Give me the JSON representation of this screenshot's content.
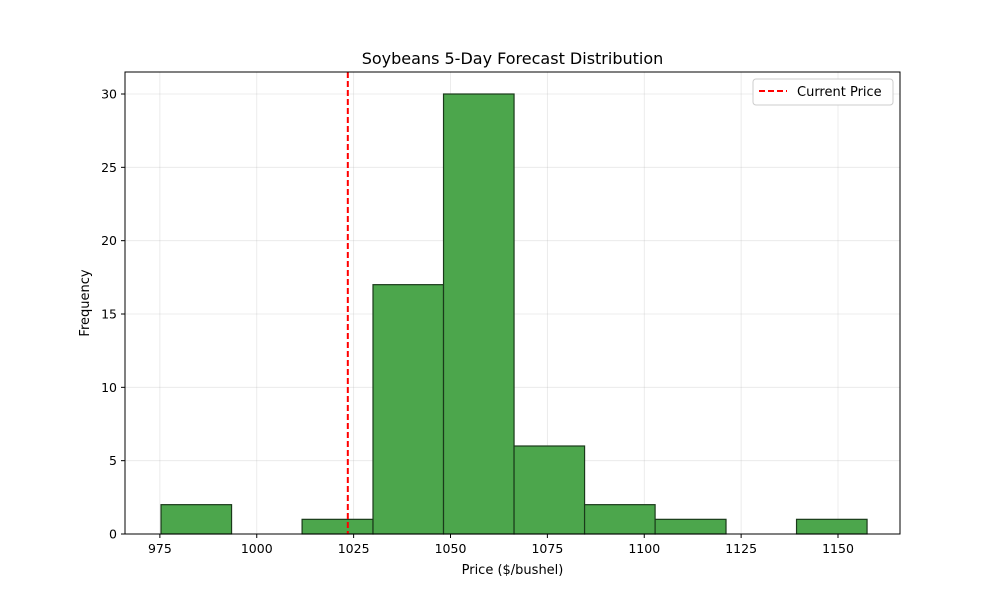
{
  "chart_data": {
    "type": "bar",
    "title": "Soybeans 5-Day Forecast Distribution",
    "xlabel": "Price ($/bushel)",
    "ylabel": "Frequency",
    "xlim": [
      966,
      1166
    ],
    "ylim": [
      0,
      31.5
    ],
    "xticks": [
      975,
      1000,
      1025,
      1050,
      1075,
      1100,
      1125,
      1150
    ],
    "yticks": [
      0,
      5,
      10,
      15,
      20,
      25,
      30
    ],
    "grid": true,
    "bins": [
      {
        "x0": 975.3,
        "x1": 993.5,
        "count": 2
      },
      {
        "x0": 993.5,
        "x1": 1011.7,
        "count": 0
      },
      {
        "x0": 1011.7,
        "x1": 1030.0,
        "count": 1
      },
      {
        "x0": 1030.0,
        "x1": 1048.2,
        "count": 17
      },
      {
        "x0": 1048.2,
        "x1": 1066.4,
        "count": 30
      },
      {
        "x0": 1066.4,
        "x1": 1084.6,
        "count": 6
      },
      {
        "x0": 1084.6,
        "x1": 1102.8,
        "count": 2
      },
      {
        "x0": 1102.8,
        "x1": 1121.1,
        "count": 1
      },
      {
        "x0": 1121.1,
        "x1": 1139.3,
        "count": 0
      },
      {
        "x0": 1139.3,
        "x1": 1157.5,
        "count": 1
      }
    ],
    "reference_line": {
      "name": "Current Price",
      "x": 1023.5,
      "color": "#ff0000",
      "style": "dashed"
    },
    "bar_color": "#4ca64c",
    "edge_color": "#1a3a1a",
    "legend": {
      "position": "top-right",
      "entries": [
        "Current Price"
      ]
    }
  }
}
